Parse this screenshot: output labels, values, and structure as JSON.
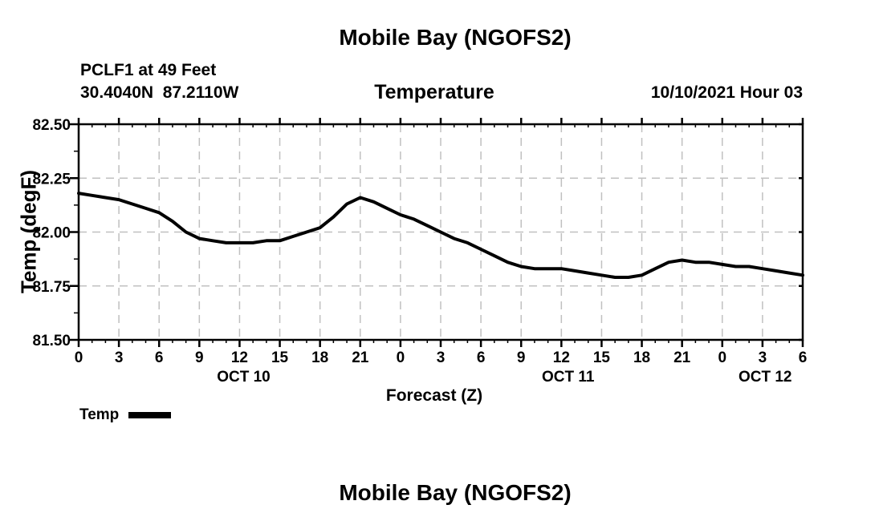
{
  "page_title": "Mobile Bay (NGOFS2)",
  "header": {
    "station_line": "PCLF1 at 49 Feet",
    "coords_line": "30.4040N  87.2110W",
    "panel_title": "Temperature",
    "run_label": "10/10/2021 Hour 03"
  },
  "legend": {
    "label": "Temp",
    "color": "#000000"
  },
  "footer": {
    "next_panel_title": "Mobile Bay (NGOFS2)"
  },
  "colors": {
    "background": "#ffffff",
    "text": "#000000",
    "grid": "#c0c0c0",
    "line": "#000000",
    "axis": "#000000"
  },
  "chart_data": {
    "type": "line",
    "title": "Temperature",
    "xlabel": "Forecast (Z)",
    "ylabel": "Temp (degF)",
    "xlim": [
      0,
      54
    ],
    "ylim": [
      81.5,
      82.5
    ],
    "grid": "dashed",
    "legend_position": "bottom-left",
    "y_major_step": 0.25,
    "y_minor_step": 0.125,
    "y_tick_labels": [
      "81.50",
      "81.75",
      "82.00",
      "82.25",
      "82.50"
    ],
    "x_major_step_hours": 3,
    "x_minor_step_hours": 1,
    "x_tick_labels": [
      "0",
      "3",
      "6",
      "9",
      "12",
      "15",
      "18",
      "21",
      "0",
      "3",
      "6",
      "9",
      "12",
      "15",
      "18",
      "21",
      "0",
      "3",
      "6"
    ],
    "date_labels": [
      {
        "text": "OCT 10",
        "hour": 12.3
      },
      {
        "text": "OCT 11",
        "hour": 36.5
      },
      {
        "text": "OCT 12",
        "hour": 51.2
      }
    ],
    "series": [
      {
        "name": "Temp",
        "color": "#000000",
        "x_hours": [
          0,
          1,
          2,
          3,
          4,
          5,
          6,
          7,
          8,
          9,
          10,
          11,
          12,
          13,
          14,
          15,
          16,
          17,
          18,
          19,
          20,
          21,
          22,
          23,
          24,
          25,
          26,
          27,
          28,
          29,
          30,
          31,
          32,
          33,
          34,
          35,
          36,
          37,
          38,
          39,
          40,
          41,
          42,
          43,
          44,
          45,
          46,
          47,
          48,
          49,
          50,
          51,
          52,
          53,
          54
        ],
        "values": [
          82.18,
          82.17,
          82.16,
          82.15,
          82.13,
          82.11,
          82.09,
          82.05,
          82.0,
          81.97,
          81.96,
          81.95,
          81.95,
          81.95,
          81.96,
          81.96,
          81.98,
          82.0,
          82.02,
          82.07,
          82.13,
          82.16,
          82.14,
          82.11,
          82.08,
          82.06,
          82.03,
          82.0,
          81.97,
          81.95,
          81.92,
          81.89,
          81.86,
          81.84,
          81.83,
          81.83,
          81.83,
          81.82,
          81.81,
          81.8,
          81.79,
          81.79,
          81.8,
          81.83,
          81.86,
          81.87,
          81.86,
          81.86,
          81.85,
          81.84,
          81.84,
          81.83,
          81.82,
          81.81,
          81.8
        ]
      }
    ]
  }
}
